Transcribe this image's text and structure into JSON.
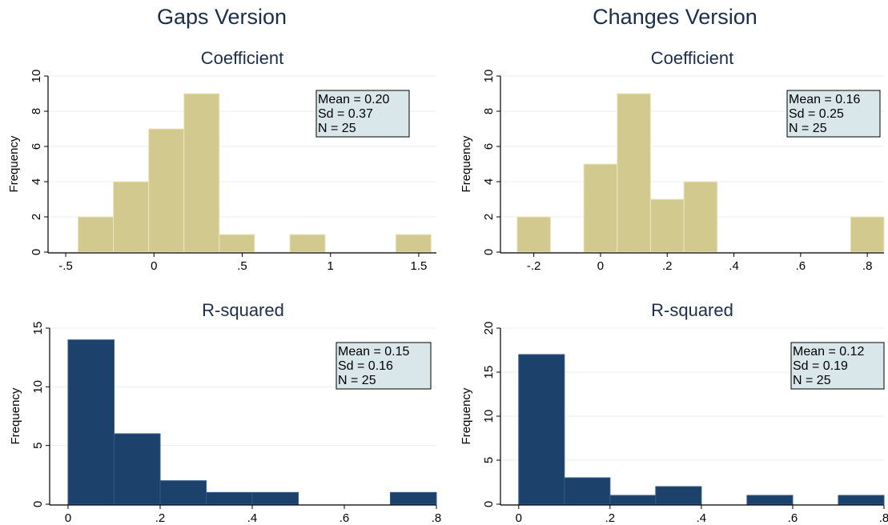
{
  "column_titles": [
    "Gaps Version",
    "Changes Version"
  ],
  "colors": {
    "coefficient_bar": "#d2c98f",
    "coefficient_bar_stroke": "#ece6bf",
    "rsquared_bar": "#1c426b",
    "rsquared_bar_stroke": "#2f5a86",
    "stats_box": "#d9e6ea",
    "grid": "#e9eef0",
    "title": "#1c2e4a"
  },
  "chart_data": [
    {
      "type": "bar",
      "column": "Gaps Version",
      "title": "Coefficient",
      "ylabel": "Frequency",
      "xlim": [
        -0.6,
        1.6
      ],
      "ylim": [
        0,
        10
      ],
      "xticks": [
        -0.5,
        0,
        0.5,
        1,
        1.5
      ],
      "xtick_labels": [
        "-.5",
        "0",
        ".5",
        "1",
        "1.5"
      ],
      "yticks": [
        0,
        2,
        4,
        6,
        8,
        10
      ],
      "ytick_labels": [
        "0",
        "2",
        "4",
        "6",
        "8",
        "10"
      ],
      "bin_edges": [
        -0.43,
        -0.23,
        -0.03,
        0.17,
        0.37,
        0.57,
        0.77,
        0.97,
        1.17,
        1.37,
        1.57
      ],
      "values": [
        2,
        4,
        7,
        9,
        1,
        0,
        1,
        0,
        0,
        1
      ],
      "stats": [
        "Mean = 0.20",
        "Sd = 0.37",
        "N = 25"
      ],
      "stats_position": "top-right",
      "color_key": "coefficient"
    },
    {
      "type": "bar",
      "column": "Changes Version",
      "title": "Coefficient",
      "ylabel": "Frequency",
      "xlim": [
        -0.3,
        0.85
      ],
      "ylim": [
        0,
        10
      ],
      "xticks": [
        -0.2,
        0,
        0.2,
        0.4,
        0.6,
        0.8
      ],
      "xtick_labels": [
        "-.2",
        "0",
        ".2",
        ".4",
        ".6",
        ".8"
      ],
      "yticks": [
        0,
        2,
        4,
        6,
        8,
        10
      ],
      "ytick_labels": [
        "0",
        "2",
        "4",
        "6",
        "8",
        "10"
      ],
      "bin_edges": [
        -0.25,
        -0.15,
        -0.05,
        0.05,
        0.15,
        0.25,
        0.35,
        0.45,
        0.55,
        0.65,
        0.75,
        0.85
      ],
      "values": [
        2,
        0,
        5,
        9,
        3,
        4,
        0,
        0,
        0,
        0,
        2
      ],
      "stats": [
        "Mean = 0.16",
        "Sd = 0.25",
        "N = 25"
      ],
      "stats_position": "top-right",
      "color_key": "coefficient"
    },
    {
      "type": "bar",
      "column": "Gaps Version",
      "title": "R-squared",
      "ylabel": "Frequency",
      "xlim": [
        -0.04,
        0.8
      ],
      "ylim": [
        0,
        15
      ],
      "xticks": [
        0,
        0.2,
        0.4,
        0.6,
        0.8
      ],
      "xtick_labels": [
        "0",
        ".2",
        ".4",
        ".6",
        ".8"
      ],
      "yticks": [
        0,
        5,
        10,
        15
      ],
      "ytick_labels": [
        "0",
        "5",
        "10",
        "15"
      ],
      "bin_edges": [
        0,
        0.1,
        0.2,
        0.3,
        0.4,
        0.5,
        0.6,
        0.7,
        0.8
      ],
      "values": [
        14,
        6,
        2,
        1,
        1,
        0,
        0,
        1
      ],
      "stats": [
        "Mean = 0.15",
        "Sd = 0.16",
        "N = 25"
      ],
      "stats_position": "top-right",
      "color_key": "rsquared"
    },
    {
      "type": "bar",
      "column": "Changes Version",
      "title": "R-squared",
      "ylabel": "Frequency",
      "xlim": [
        -0.04,
        0.8
      ],
      "ylim": [
        0,
        20
      ],
      "xticks": [
        0,
        0.2,
        0.4,
        0.6,
        0.8
      ],
      "xtick_labels": [
        "0",
        ".2",
        ".4",
        ".6",
        ".8"
      ],
      "yticks": [
        0,
        5,
        10,
        15,
        20
      ],
      "ytick_labels": [
        "0",
        "5",
        "10",
        "15",
        "20"
      ],
      "bin_edges": [
        0,
        0.1,
        0.2,
        0.3,
        0.4,
        0.5,
        0.6,
        0.7,
        0.8
      ],
      "values": [
        17,
        3,
        1,
        2,
        0,
        1,
        0,
        1
      ],
      "stats": [
        "Mean = 0.12",
        "Sd = 0.19",
        "N = 25"
      ],
      "stats_position": "top-right",
      "color_key": "rsquared"
    }
  ]
}
